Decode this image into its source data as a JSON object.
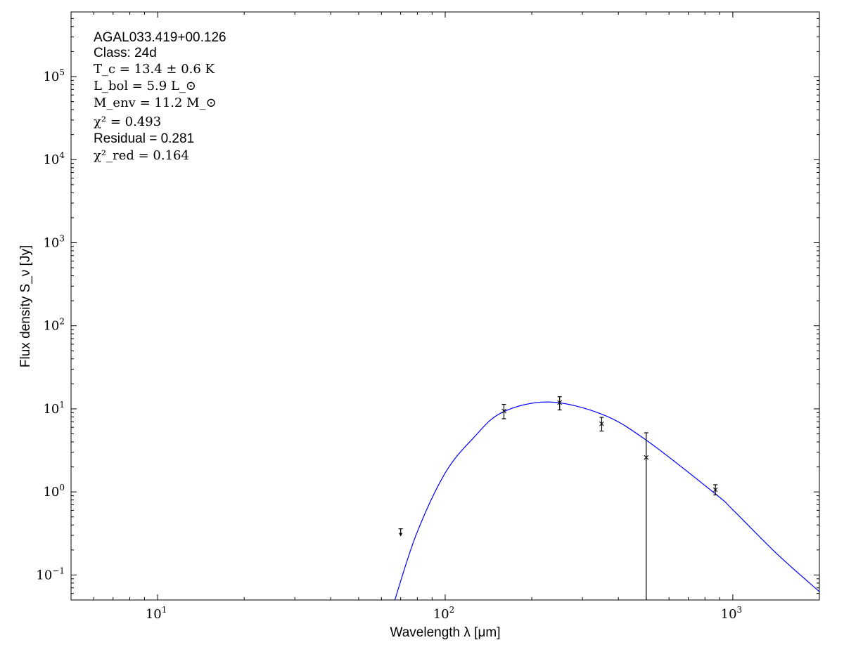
{
  "chart_data": {
    "type": "scatter",
    "xlabel": "Wavelength λ [μm]",
    "ylabel": "Flux density S_ν [Jy]",
    "xscale": "log",
    "yscale": "log",
    "xlim": [
      5,
      2000
    ],
    "ylim": [
      0.05,
      600000
    ],
    "grid": false,
    "x_ticks": [
      {
        "value": 10,
        "base": "10",
        "exp": "1"
      },
      {
        "value": 100,
        "base": "10",
        "exp": "2"
      },
      {
        "value": 1000,
        "base": "10",
        "exp": "3"
      }
    ],
    "y_ticks": [
      {
        "value": 0.1,
        "base": "10",
        "exp": "−1"
      },
      {
        "value": 1,
        "base": "10",
        "exp": "0"
      },
      {
        "value": 10,
        "base": "10",
        "exp": "1"
      },
      {
        "value": 100,
        "base": "10",
        "exp": "2"
      },
      {
        "value": 1000,
        "base": "10",
        "exp": "3"
      },
      {
        "value": 10000,
        "base": "10",
        "exp": "4"
      },
      {
        "value": 100000,
        "base": "10",
        "exp": "5"
      }
    ],
    "annotations": {
      "source": "AGAL033.419+00.126",
      "class": "Class: 24d",
      "tc": "T_c = 13.4 ± 0.6 K",
      "lbol": "L_bol = 5.9 L_⊙",
      "menv": "M_env = 11.2 M_⊙",
      "chi2": "χ² = 0.493",
      "residual": "Residual = 0.281",
      "chi2red": "χ²_red = 0.164"
    },
    "points": [
      {
        "x": 70,
        "y": 0.32,
        "err_hi": 0.36,
        "upper_limit": true
      },
      {
        "x": 160,
        "y": 9.4,
        "err_lo": 7.6,
        "err_hi": 11.3
      },
      {
        "x": 250,
        "y": 11.9,
        "err_lo": 9.7,
        "err_hi": 14.0
      },
      {
        "x": 350,
        "y": 6.6,
        "err_lo": 5.4,
        "err_hi": 7.9
      },
      {
        "x": 500,
        "y": 2.6,
        "err_lo": 0.001,
        "err_hi": 5.15
      },
      {
        "x": 870,
        "y": 1.06,
        "err_lo": 0.92,
        "err_hi": 1.22
      }
    ],
    "model": {
      "color": "#0000ff",
      "x": [
        66.8,
        79.4,
        100,
        125.6,
        158,
        229,
        351,
        500,
        872,
        1000,
        1416,
        2000
      ],
      "y": [
        0.05,
        0.31,
        1.69,
        4.5,
        9.1,
        12.1,
        8.6,
        4.2,
        0.94,
        0.61,
        0.183,
        0.063
      ]
    }
  }
}
